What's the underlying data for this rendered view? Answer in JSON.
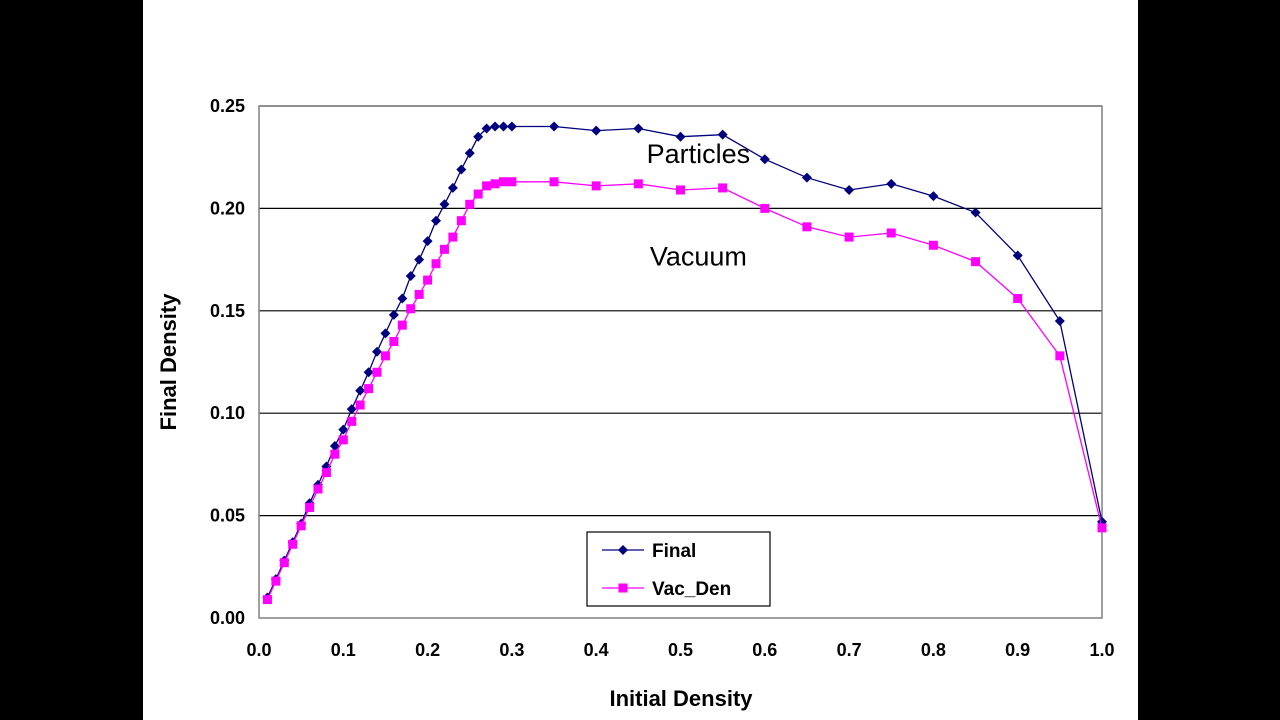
{
  "chart_data": {
    "type": "line",
    "xlabel": "Initial Density",
    "ylabel": "Final Density",
    "xlim": [
      0.0,
      1.0
    ],
    "ylim": [
      0.0,
      0.25
    ],
    "xticks": [
      "0.0",
      "0.1",
      "0.2",
      "0.3",
      "0.4",
      "0.5",
      "0.6",
      "0.7",
      "0.8",
      "0.9",
      "1.0"
    ],
    "yticks": [
      "0.00",
      "0.05",
      "0.10",
      "0.15",
      "0.20",
      "0.25"
    ],
    "grid": "horizontal",
    "legend_position": "bottom-center",
    "annotations": [
      {
        "text": "Particles",
        "x": 0.52,
        "y": 0.225
      },
      {
        "text": "Vacuum",
        "x": 0.52,
        "y": 0.175
      }
    ],
    "series": [
      {
        "name": "Final",
        "color": "#00007f",
        "marker": "diamond",
        "points": [
          [
            0.01,
            0.01
          ],
          [
            0.02,
            0.019
          ],
          [
            0.03,
            0.028
          ],
          [
            0.04,
            0.037
          ],
          [
            0.05,
            0.046
          ],
          [
            0.06,
            0.056
          ],
          [
            0.07,
            0.065
          ],
          [
            0.08,
            0.074
          ],
          [
            0.09,
            0.084
          ],
          [
            0.1,
            0.092
          ],
          [
            0.11,
            0.102
          ],
          [
            0.12,
            0.111
          ],
          [
            0.13,
            0.12
          ],
          [
            0.14,
            0.13
          ],
          [
            0.15,
            0.139
          ],
          [
            0.16,
            0.148
          ],
          [
            0.17,
            0.156
          ],
          [
            0.18,
            0.167
          ],
          [
            0.19,
            0.175
          ],
          [
            0.2,
            0.184
          ],
          [
            0.21,
            0.194
          ],
          [
            0.22,
            0.202
          ],
          [
            0.23,
            0.21
          ],
          [
            0.24,
            0.219
          ],
          [
            0.25,
            0.227
          ],
          [
            0.26,
            0.235
          ],
          [
            0.27,
            0.239
          ],
          [
            0.28,
            0.24
          ],
          [
            0.29,
            0.24
          ],
          [
            0.3,
            0.24
          ],
          [
            0.35,
            0.24
          ],
          [
            0.4,
            0.238
          ],
          [
            0.45,
            0.239
          ],
          [
            0.5,
            0.235
          ],
          [
            0.55,
            0.236
          ],
          [
            0.6,
            0.224
          ],
          [
            0.65,
            0.215
          ],
          [
            0.7,
            0.209
          ],
          [
            0.75,
            0.212
          ],
          [
            0.8,
            0.206
          ],
          [
            0.85,
            0.198
          ],
          [
            0.9,
            0.177
          ],
          [
            0.95,
            0.145
          ],
          [
            1.0,
            0.047
          ]
        ]
      },
      {
        "name": "Vac_Den",
        "color": "#ff00ff",
        "marker": "square",
        "points": [
          [
            0.01,
            0.009
          ],
          [
            0.02,
            0.018
          ],
          [
            0.03,
            0.027
          ],
          [
            0.04,
            0.036
          ],
          [
            0.05,
            0.045
          ],
          [
            0.06,
            0.054
          ],
          [
            0.07,
            0.063
          ],
          [
            0.08,
            0.071
          ],
          [
            0.09,
            0.08
          ],
          [
            0.1,
            0.087
          ],
          [
            0.11,
            0.096
          ],
          [
            0.12,
            0.104
          ],
          [
            0.13,
            0.112
          ],
          [
            0.14,
            0.12
          ],
          [
            0.15,
            0.128
          ],
          [
            0.16,
            0.135
          ],
          [
            0.17,
            0.143
          ],
          [
            0.18,
            0.151
          ],
          [
            0.19,
            0.158
          ],
          [
            0.2,
            0.165
          ],
          [
            0.21,
            0.173
          ],
          [
            0.22,
            0.18
          ],
          [
            0.23,
            0.186
          ],
          [
            0.24,
            0.194
          ],
          [
            0.25,
            0.202
          ],
          [
            0.26,
            0.207
          ],
          [
            0.27,
            0.211
          ],
          [
            0.28,
            0.212
          ],
          [
            0.29,
            0.213
          ],
          [
            0.3,
            0.213
          ],
          [
            0.35,
            0.213
          ],
          [
            0.4,
            0.211
          ],
          [
            0.45,
            0.212
          ],
          [
            0.5,
            0.209
          ],
          [
            0.55,
            0.21
          ],
          [
            0.6,
            0.2
          ],
          [
            0.65,
            0.191
          ],
          [
            0.7,
            0.186
          ],
          [
            0.75,
            0.188
          ],
          [
            0.8,
            0.182
          ],
          [
            0.85,
            0.174
          ],
          [
            0.9,
            0.156
          ],
          [
            0.95,
            0.128
          ],
          [
            1.0,
            0.044
          ]
        ]
      }
    ]
  }
}
